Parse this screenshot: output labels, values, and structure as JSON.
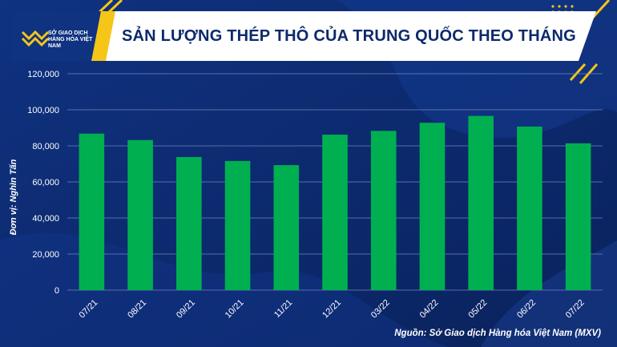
{
  "header": {
    "title": "SẢN LƯỢNG THÉP THÔ CỦA TRUNG QUỐC THEO THÁNG",
    "logo_text": "SỞ GIAO DỊCH HÀNG HÓA VIỆT NAM"
  },
  "footer": {
    "source": "Nguồn: Sở Giao dịch Hàng hóa Việt Nam (MXV)"
  },
  "colors": {
    "background": "#0d2a6e",
    "bar": "#00b050",
    "accent": "#f5c518",
    "title": "#0c2a6b"
  },
  "chart_data": {
    "type": "bar",
    "categories": [
      "07/21",
      "08/21",
      "09/21",
      "10/21",
      "11/21",
      "12/21",
      "03/22",
      "04/22",
      "05/22",
      "06/22",
      "07/22"
    ],
    "values": [
      86800,
      83200,
      73800,
      71600,
      69300,
      86200,
      88300,
      92800,
      96600,
      90700,
      81400
    ],
    "ylabel": "Đơn vị: Nghìn Tấn",
    "ylim": [
      0,
      120000
    ],
    "yticks": [
      "0",
      "20,000",
      "40,000",
      "60,000",
      "80,000",
      "100,000",
      "120,000"
    ],
    "ytick_values": [
      0,
      20000,
      40000,
      60000,
      80000,
      100000,
      120000
    ],
    "grid": true,
    "legend": "none"
  }
}
